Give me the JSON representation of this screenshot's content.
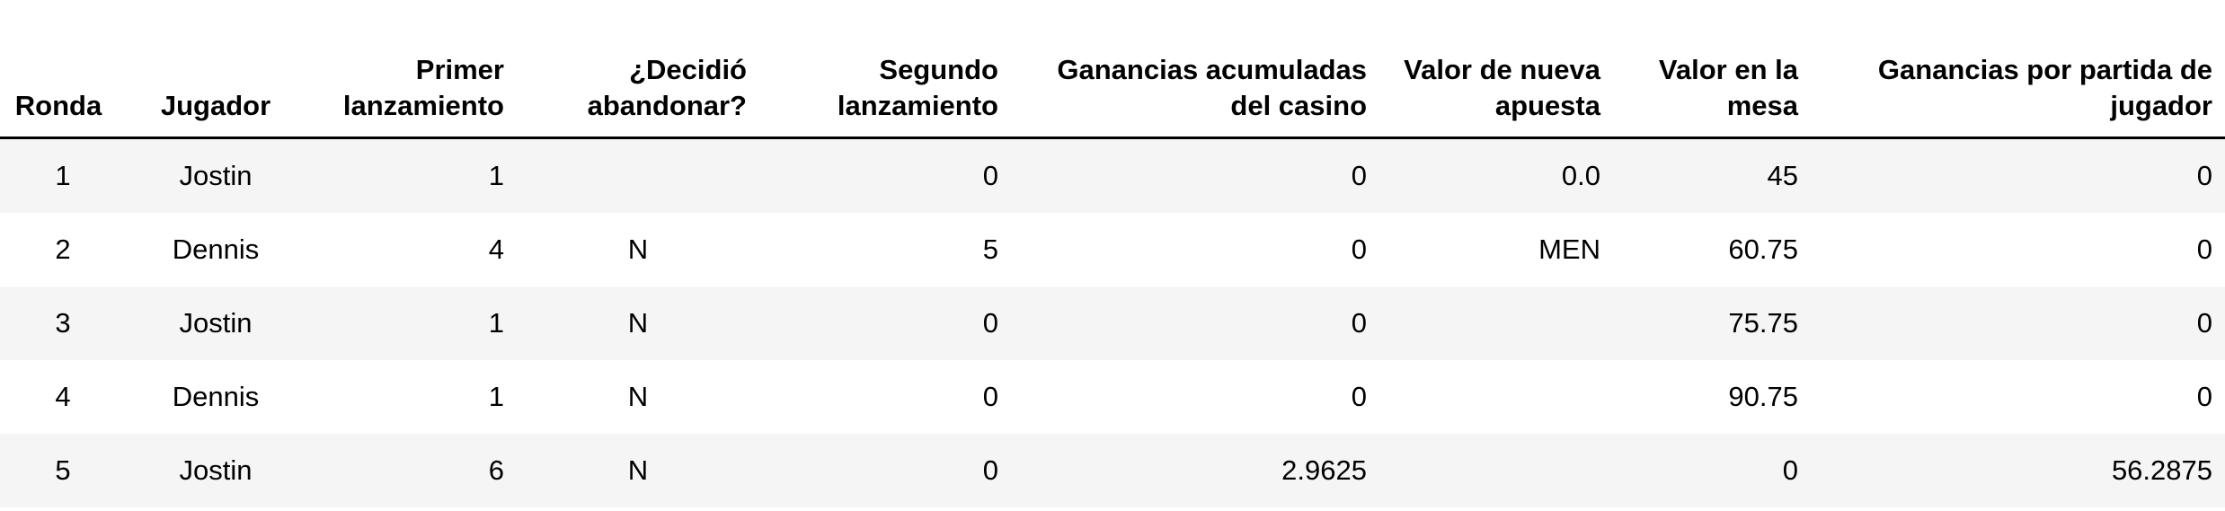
{
  "table": {
    "headers": {
      "ronda": "Ronda",
      "jugador": "Jugador",
      "primer": "Primer lanzamiento",
      "decidio": "¿Decidió abandonar?",
      "segundo": "Segundo lanzamiento",
      "ganancias_casino": "Ganancias acumuladas del casino",
      "valor_apuesta": "Valor de nueva apuesta",
      "valor_mesa": "Valor en la mesa",
      "ganancias_jugador": "Ganancias por partida de jugador"
    },
    "rows": [
      {
        "ronda": "1",
        "jugador": "Jostin",
        "primer": "1",
        "decidio": "",
        "segundo": "0",
        "ganancias_casino": "0",
        "valor_apuesta": "0.0",
        "valor_mesa": "45",
        "ganancias_jugador": "0"
      },
      {
        "ronda": "2",
        "jugador": "Dennis",
        "primer": "4",
        "decidio": "N",
        "segundo": "5",
        "ganancias_casino": "0",
        "valor_apuesta": "MEN",
        "valor_mesa": "60.75",
        "ganancias_jugador": "0"
      },
      {
        "ronda": "3",
        "jugador": "Jostin",
        "primer": "1",
        "decidio": "N",
        "segundo": "0",
        "ganancias_casino": "0",
        "valor_apuesta": "",
        "valor_mesa": "75.75",
        "ganancias_jugador": "0"
      },
      {
        "ronda": "4",
        "jugador": "Dennis",
        "primer": "1",
        "decidio": "N",
        "segundo": "0",
        "ganancias_casino": "0",
        "valor_apuesta": "",
        "valor_mesa": "90.75",
        "ganancias_jugador": "0"
      },
      {
        "ronda": "5",
        "jugador": "Jostin",
        "primer": "6",
        "decidio": "N",
        "segundo": "0",
        "ganancias_casino": "2.9625",
        "valor_apuesta": "",
        "valor_mesa": "0",
        "ganancias_jugador": "56.2875"
      }
    ]
  }
}
